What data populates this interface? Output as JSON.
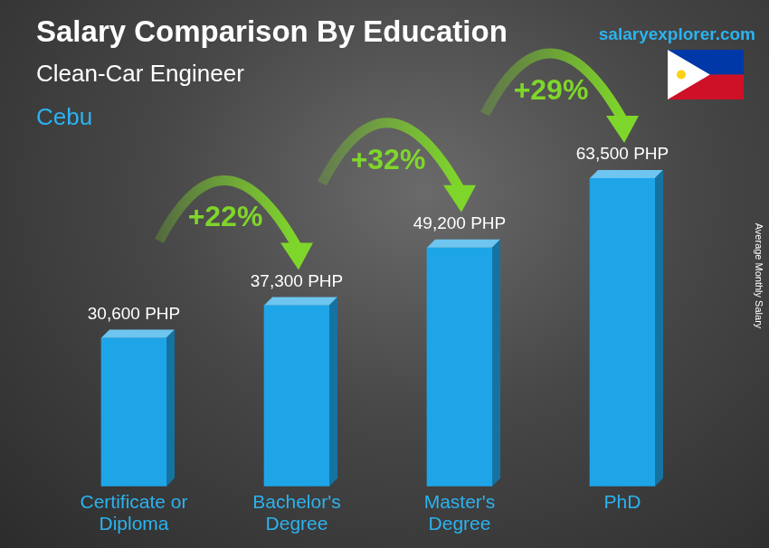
{
  "chart_data": {
    "type": "bar",
    "title": "Salary Comparison By Education",
    "subtitle": "Clean-Car Engineer",
    "location": "Cebu",
    "source": "salaryexplorer.com",
    "y_label": "Average Monthly Salary",
    "categories": [
      "Certificate or Diploma",
      "Bachelor's Degree",
      "Master's Degree",
      "PhD"
    ],
    "values": [
      30600,
      37300,
      49200,
      63500
    ],
    "value_labels": [
      "30,600 PHP",
      "37,300 PHP",
      "49,200 PHP",
      "63,500 PHP"
    ],
    "data_labels": true,
    "annotations": [
      "+22%",
      "+32%",
      "+29%"
    ],
    "color": "#1ea5e8",
    "ylim": [
      0,
      63500
    ],
    "grid": false,
    "tick_labels": "x"
  }
}
